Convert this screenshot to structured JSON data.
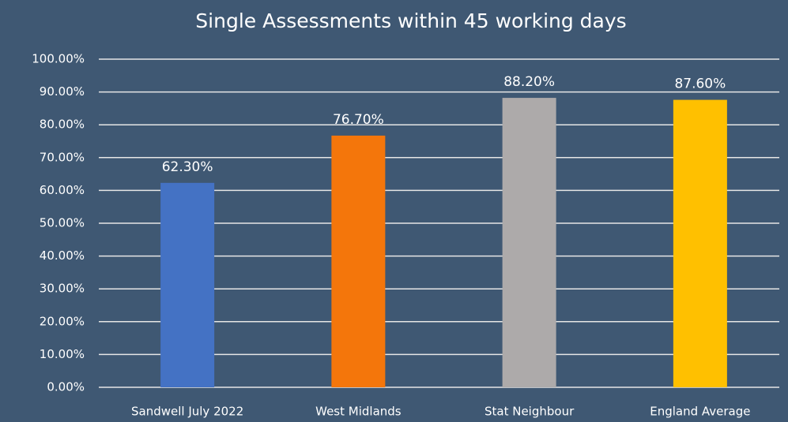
{
  "chart_data": {
    "type": "bar",
    "title": "Single Assessments  within 45 working days",
    "categories": [
      "Sandwell July 2022",
      "West Midlands",
      "Stat Neighbour",
      "England Average"
    ],
    "values": [
      62.3,
      76.7,
      88.2,
      87.6
    ],
    "value_labels": [
      "62.30%",
      "76.70%",
      "88.20%",
      "87.60%"
    ],
    "colors": [
      "#4472c4",
      "#f4760b",
      "#adaaaa",
      "#ffc000"
    ],
    "ylim": [
      0,
      100
    ],
    "yticks": [
      {
        "value": 0,
        "label": "0.00%"
      },
      {
        "value": 10,
        "label": "10.00%"
      },
      {
        "value": 20,
        "label": "20.00%"
      },
      {
        "value": 30,
        "label": "30.00%"
      },
      {
        "value": 40,
        "label": "40.00%"
      },
      {
        "value": 50,
        "label": "50.00%"
      },
      {
        "value": 60,
        "label": "60.00%"
      },
      {
        "value": 70,
        "label": "70.00%"
      },
      {
        "value": 80,
        "label": "80.00%"
      },
      {
        "value": 90,
        "label": "90.00%"
      },
      {
        "value": 100,
        "label": "100.00%"
      }
    ],
    "grid": true
  }
}
